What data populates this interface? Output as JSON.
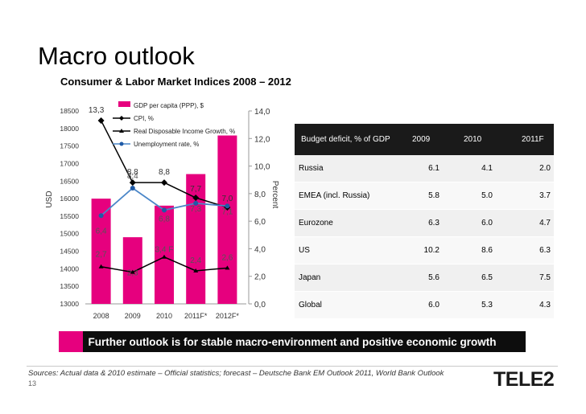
{
  "page": {
    "title": "Macro outlook",
    "subtitle": "Consumer & Labor Market Indices 2008 – 2012",
    "banner": "Further outlook is for stable macro-environment and positive economic growth",
    "sources": "Sources: Actual data & 2010 estimate – Official statistics; forecast – Deutsche Bank  EM Outlook 2011, World Bank Outlook",
    "page_number": "13",
    "logo_text": "TELE2"
  },
  "colors": {
    "gdp_bar": "#e6007e",
    "cpi_line": "#000000",
    "income_line": "#000000",
    "unemployment_line": "#4a86c8",
    "table_header_bg": "#1a1a1a"
  },
  "chart_data": {
    "type": "bar",
    "categories": [
      "2008",
      "2009",
      "2010",
      "2011F*",
      "2012F*"
    ],
    "ylabel": "USD",
    "y2label": "Percent",
    "ylim": [
      13000,
      18500
    ],
    "y_ticks": [
      "13000",
      "13500",
      "14000",
      "14500",
      "15000",
      "15500",
      "16000",
      "16500",
      "17000",
      "17500",
      "18000",
      "18500"
    ],
    "y2lim": [
      0,
      14
    ],
    "y2_ticks": [
      "0,0",
      "2,0",
      "4,0",
      "6,0",
      "8,0",
      "10,0",
      "12,0",
      "14,0"
    ],
    "series": [
      {
        "name": "GDP per capita (PPP), $",
        "type": "bar",
        "axis": "left",
        "values": [
          16000,
          14900,
          15800,
          16700,
          17800
        ]
      },
      {
        "name": "CPI, %",
        "type": "line",
        "axis": "right",
        "values": [
          13.3,
          8.8,
          8.8,
          7.7,
          7.0
        ],
        "labels": [
          "13,3",
          "8,8",
          "8,8",
          "7,7",
          "7,0"
        ]
      },
      {
        "name": "Real Disposable Income Growth, %",
        "type": "line",
        "axis": "right",
        "values": [
          2.7,
          2.3,
          3.4,
          2.4,
          2.6
        ],
        "labels": [
          "2,7",
          "2,3",
          "3,4 F",
          "2,4",
          "2,6"
        ]
      },
      {
        "name": "Unemployment rate, %",
        "type": "line",
        "axis": "right",
        "values": [
          6.4,
          8.4,
          6.8,
          7.3,
          7.1
        ],
        "labels": [
          "6,4",
          "8,4",
          "6,8",
          "7,3",
          "7,1"
        ]
      }
    ],
    "legend_position": "top",
    "grid": false
  },
  "table": {
    "header": [
      "Budget deficit, % of GDP",
      "2009",
      "2010",
      "2011F"
    ],
    "rows": [
      [
        "Russia",
        "6.1",
        "4.1",
        "2.0"
      ],
      [
        "EMEA (incl. Russia)",
        "5.8",
        "5.0",
        "3.7"
      ],
      [
        "Eurozone",
        "6.3",
        "6.0",
        "4.7"
      ],
      [
        "US",
        "10.2",
        "8.6",
        "6.3"
      ],
      [
        "Japan",
        "5.6",
        "6.5",
        "7.5"
      ],
      [
        "Global",
        "6.0",
        "5.3",
        "4.3"
      ]
    ]
  }
}
